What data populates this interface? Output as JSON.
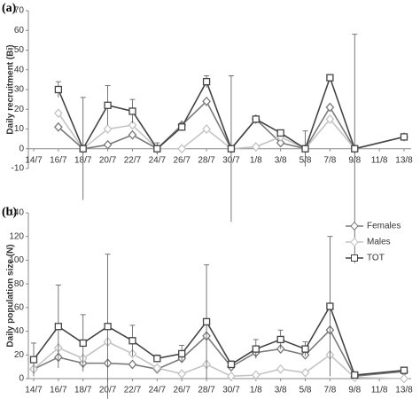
{
  "chart_data": [
    {
      "type": "line",
      "panel_label": "(a)",
      "y_label": "Daily recruitment (Bi)",
      "categories": [
        "14/7",
        "16/7",
        "18/7",
        "20/7",
        "22/7",
        "24/7",
        "26/7",
        "28/7",
        "30/7",
        "1/8",
        "3/8",
        "5/8",
        "7/8",
        "9/8",
        "11/8",
        "13/8"
      ],
      "ylim": [
        -10,
        70
      ],
      "yticks": [
        -10,
        0,
        10,
        20,
        30,
        40,
        50,
        60,
        70
      ],
      "series": [
        {
          "name": "Females",
          "color": "#7a7a7a",
          "marker": "diamond",
          "values": [
            null,
            11,
            0,
            2,
            7,
            0,
            12,
            24,
            0,
            15,
            3,
            0,
            21,
            0,
            null,
            6
          ]
        },
        {
          "name": "Males",
          "color": "#c4c4c4",
          "marker": "diamond",
          "values": [
            null,
            18,
            0,
            10,
            12,
            0,
            0,
            10,
            0,
            1,
            6,
            0,
            15,
            0,
            null,
            6
          ]
        },
        {
          "name": "TOT",
          "color": "#444444",
          "marker": "square",
          "values": [
            null,
            30,
            0,
            22,
            19,
            0,
            11,
            34,
            0,
            15,
            8,
            0,
            36,
            0,
            null,
            6
          ],
          "errors": [
            null,
            4,
            26,
            10,
            6,
            3,
            2,
            3,
            37,
            1,
            1,
            9,
            1,
            58,
            null,
            1
          ]
        }
      ]
    },
    {
      "type": "line",
      "panel_label": "(b)",
      "y_label": "Daily population size (N)",
      "categories": [
        "14/7",
        "16/7",
        "18/7",
        "20/7",
        "22/7",
        "24/7",
        "26/7",
        "28/7",
        "30/7",
        "1/8",
        "3/8",
        "5/8",
        "7/8",
        "9/8",
        "11/8",
        "13/8"
      ],
      "ylim": [
        0,
        140
      ],
      "yticks": [
        0,
        20,
        40,
        60,
        80,
        100,
        120,
        140
      ],
      "legend": "upper right",
      "series": [
        {
          "name": "Females",
          "color": "#7a7a7a",
          "marker": "diamond",
          "values": [
            8,
            18,
            13,
            13,
            12,
            8,
            17,
            36,
            10,
            22,
            25,
            20,
            41,
            2,
            null,
            6
          ]
        },
        {
          "name": "Males",
          "color": "#c4c4c4",
          "marker": "diamond",
          "values": [
            8,
            26,
            17,
            31,
            21,
            9,
            4,
            12,
            2,
            3,
            8,
            5,
            20,
            1,
            null,
            0
          ]
        },
        {
          "name": "TOT",
          "color": "#444444",
          "marker": "square",
          "values": [
            16,
            44,
            30,
            44,
            32,
            17,
            21,
            48,
            12,
            25,
            33,
            25,
            61,
            3,
            null,
            7
          ],
          "errors": [
            14,
            35,
            24,
            61,
            13,
            3,
            7,
            48,
            3,
            8,
            8,
            6,
            59,
            1,
            null,
            1
          ]
        }
      ]
    }
  ]
}
